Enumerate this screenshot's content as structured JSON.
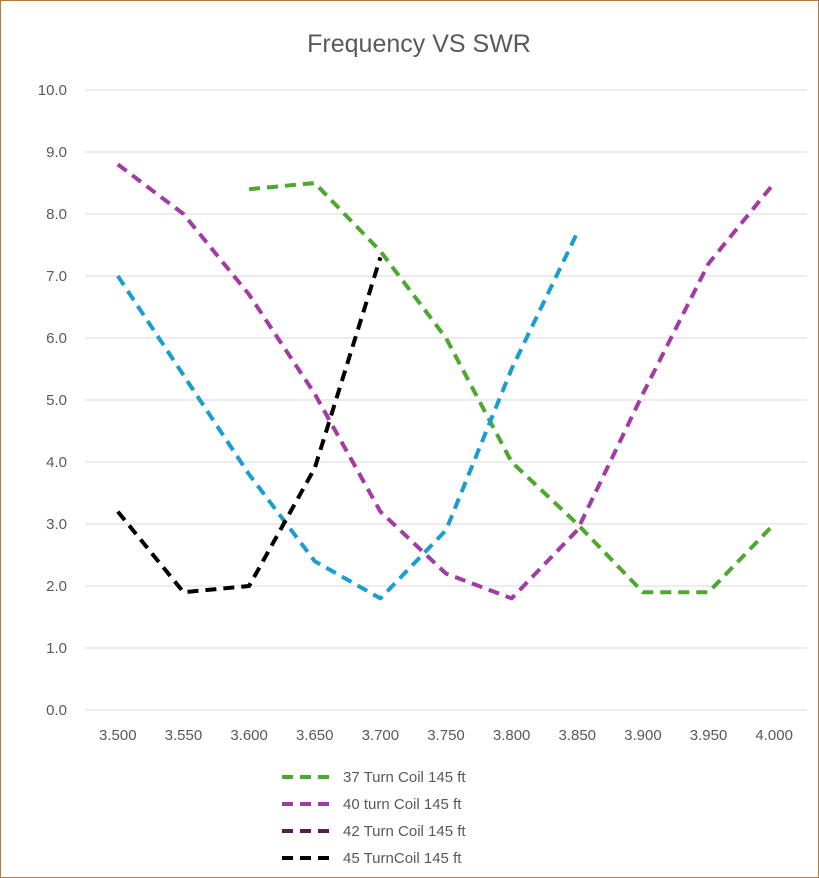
{
  "chart_data": {
    "type": "line",
    "title": "Frequency VS SWR",
    "xlabel": "",
    "ylabel": "",
    "x": [
      "3.500",
      "3.550",
      "3.600",
      "3.650",
      "3.700",
      "3.750",
      "3.800",
      "3.850",
      "3.900",
      "3.950",
      "4.000"
    ],
    "x_values": [
      3.5,
      3.55,
      3.6,
      3.65,
      3.7,
      3.75,
      3.8,
      3.85,
      3.9,
      3.95,
      4.0
    ],
    "y_ticks": [
      "0.0",
      "1.0",
      "2.0",
      "3.0",
      "4.0",
      "5.0",
      "6.0",
      "7.0",
      "8.0",
      "9.0",
      "10.0"
    ],
    "ylim": [
      0,
      10
    ],
    "grid": true,
    "legend_position": "bottom",
    "series": [
      {
        "name": "37 Turn Coil 145 ft",
        "color": "#4ea72e",
        "values": [
          null,
          null,
          8.4,
          8.5,
          7.4,
          6.0,
          4.0,
          3.0,
          1.9,
          1.9,
          3.0
        ]
      },
      {
        "name": "40 turn Coil 145 ft",
        "color": "#a23ca4",
        "values": [
          8.8,
          8.0,
          6.7,
          5.1,
          3.2,
          2.2,
          1.8,
          2.9,
          5.1,
          7.2,
          8.5
        ]
      },
      {
        "name": "42 Turn Coil 145 ft",
        "color": "#551f4f",
        "legend_color": "#551f4f",
        "line_color": "#1a9ed0",
        "values": [
          7.0,
          5.4,
          3.8,
          2.4,
          1.8,
          2.9,
          5.5,
          7.7,
          null,
          null,
          null
        ]
      },
      {
        "name": "45 TurnCoil 145 ft",
        "color": "#000000",
        "values": [
          3.2,
          1.9,
          2.0,
          3.9,
          7.3,
          null,
          null,
          null,
          null,
          null,
          null
        ]
      }
    ]
  }
}
